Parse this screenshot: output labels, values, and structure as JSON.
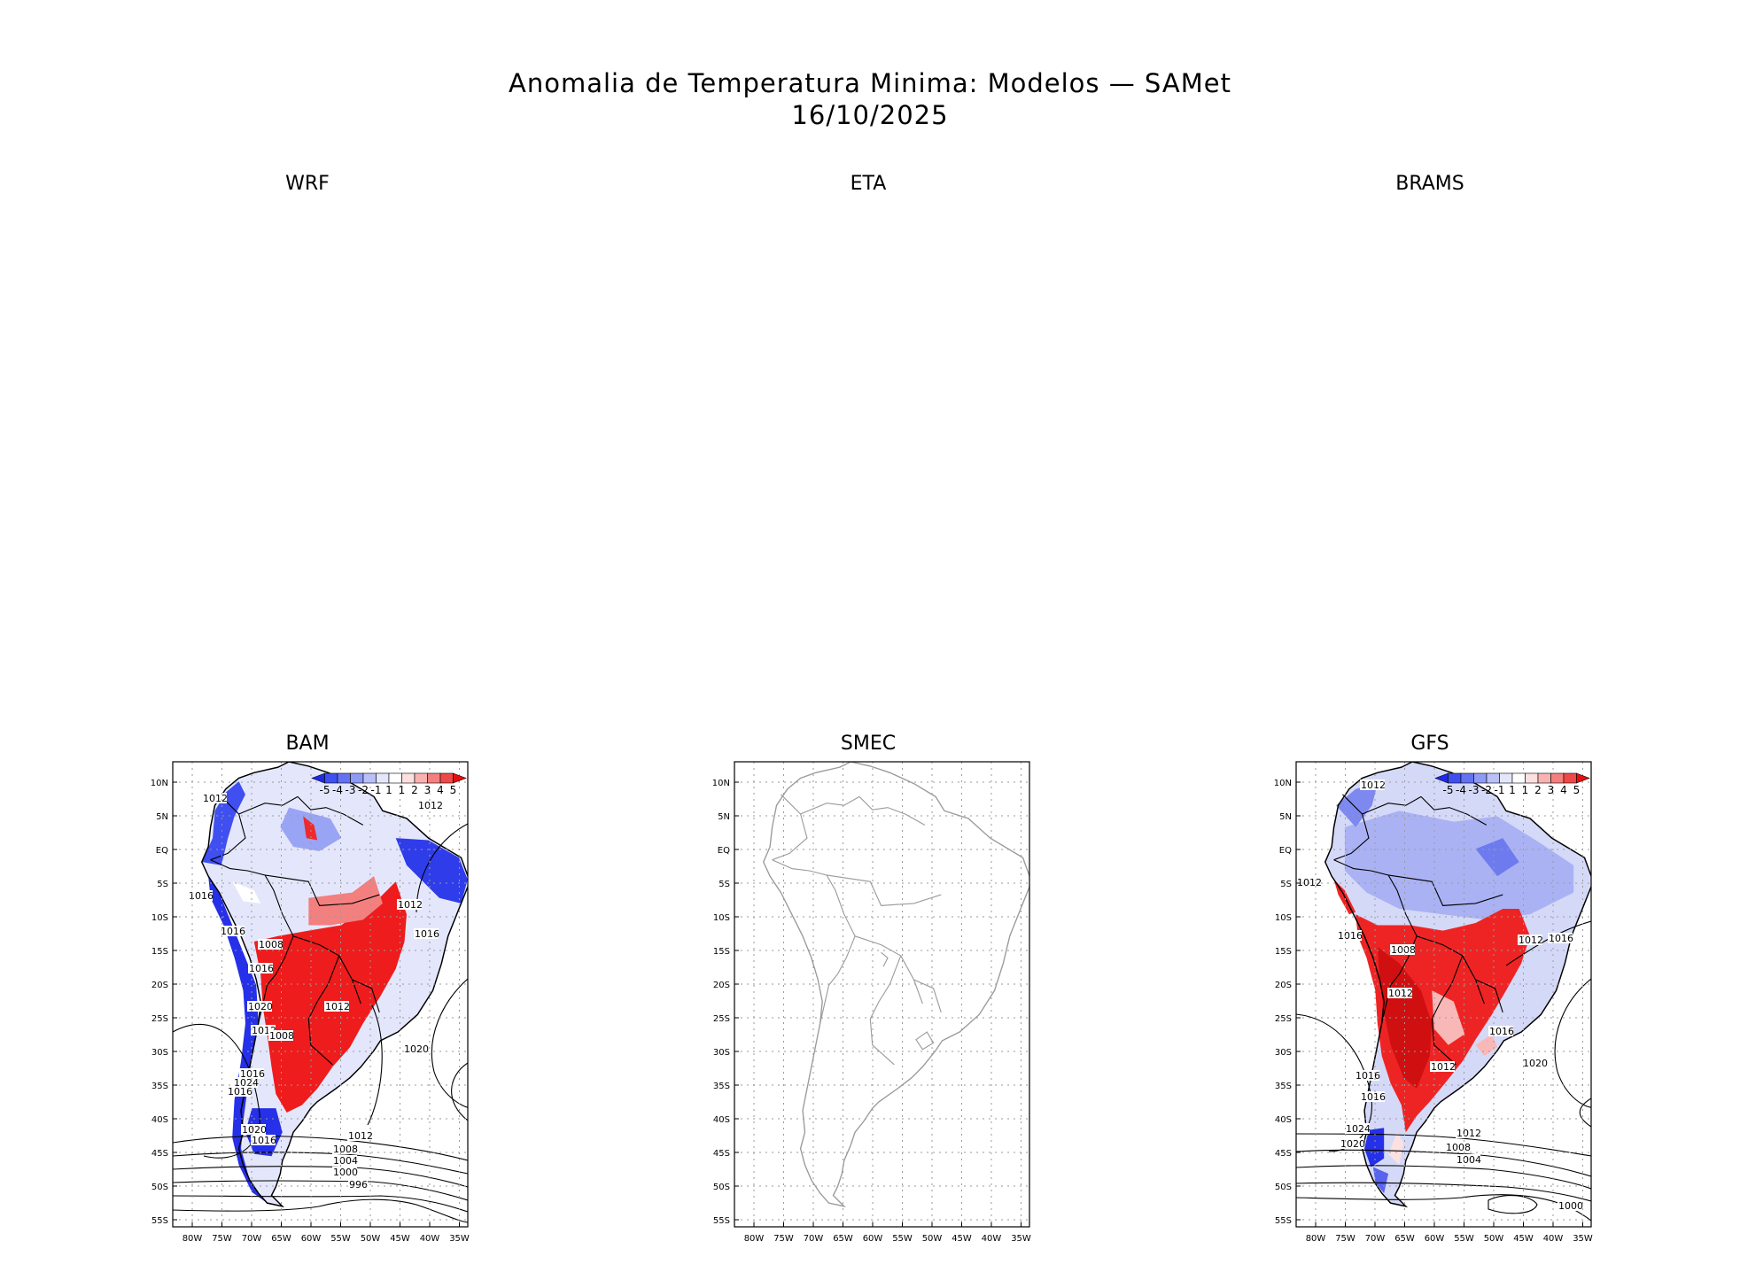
{
  "title": "Anomalia de Temperatura Minima: Modelos — SAMet",
  "date": "16/10/2025",
  "panels": [
    {
      "name": "WRF",
      "has_map": false
    },
    {
      "name": "ETA",
      "has_map": false
    },
    {
      "name": "BRAMS",
      "has_map": false
    },
    {
      "name": "BAM",
      "has_map": true,
      "has_data": true,
      "has_colorbar": true,
      "isobar_labels": [
        "1012",
        "1012",
        "1016",
        "1012",
        "1008",
        "1016",
        "1012",
        "1016",
        "1016",
        "1020",
        "1012",
        "1008",
        "1016",
        "1024",
        "1016",
        "1020",
        "1016",
        "1012",
        "1008",
        "1004",
        "1000",
        "996",
        "1020"
      ]
    },
    {
      "name": "SMEC",
      "has_map": true,
      "has_data": false,
      "has_colorbar": false,
      "isobar_labels": []
    },
    {
      "name": "GFS",
      "has_map": true,
      "has_data": true,
      "has_colorbar": true,
      "isobar_labels": [
        "1012",
        "1012",
        "1016",
        "1008",
        "1012",
        "1012",
        "1016",
        "1016",
        "1012",
        "1016",
        "1016",
        "1024",
        "1020",
        "1012",
        "1008",
        "1004",
        "1020",
        "1000"
      ]
    }
  ],
  "lat_ticks": [
    "10N",
    "5N",
    "EQ",
    "5S",
    "10S",
    "15S",
    "20S",
    "25S",
    "30S",
    "35S",
    "40S",
    "45S",
    "50S",
    "55S"
  ],
  "lon_ticks": [
    "80W",
    "75W",
    "70W",
    "65W",
    "60W",
    "55W",
    "50W",
    "45W",
    "40W",
    "35W"
  ],
  "colorbar": {
    "labels": [
      "-5",
      "-4",
      "-3",
      "-2",
      "-1",
      "1",
      "1",
      "2",
      "3",
      "4",
      "5"
    ],
    "colors": [
      "#1f2ae6",
      "#3f50f0",
      "#6472f2",
      "#8e9af4",
      "#b9c0f8",
      "#e4e6fb",
      "#ffffff",
      "#fce0e0",
      "#f8b2b2",
      "#f47f7f",
      "#ef4848",
      "#e60e0e"
    ]
  },
  "colors": {
    "warm": "#ee1c1c",
    "cold": "#2530e8",
    "light_cold": "#b7bef6",
    "coast": "#000000",
    "coast_empty": "#9a9a9a"
  }
}
